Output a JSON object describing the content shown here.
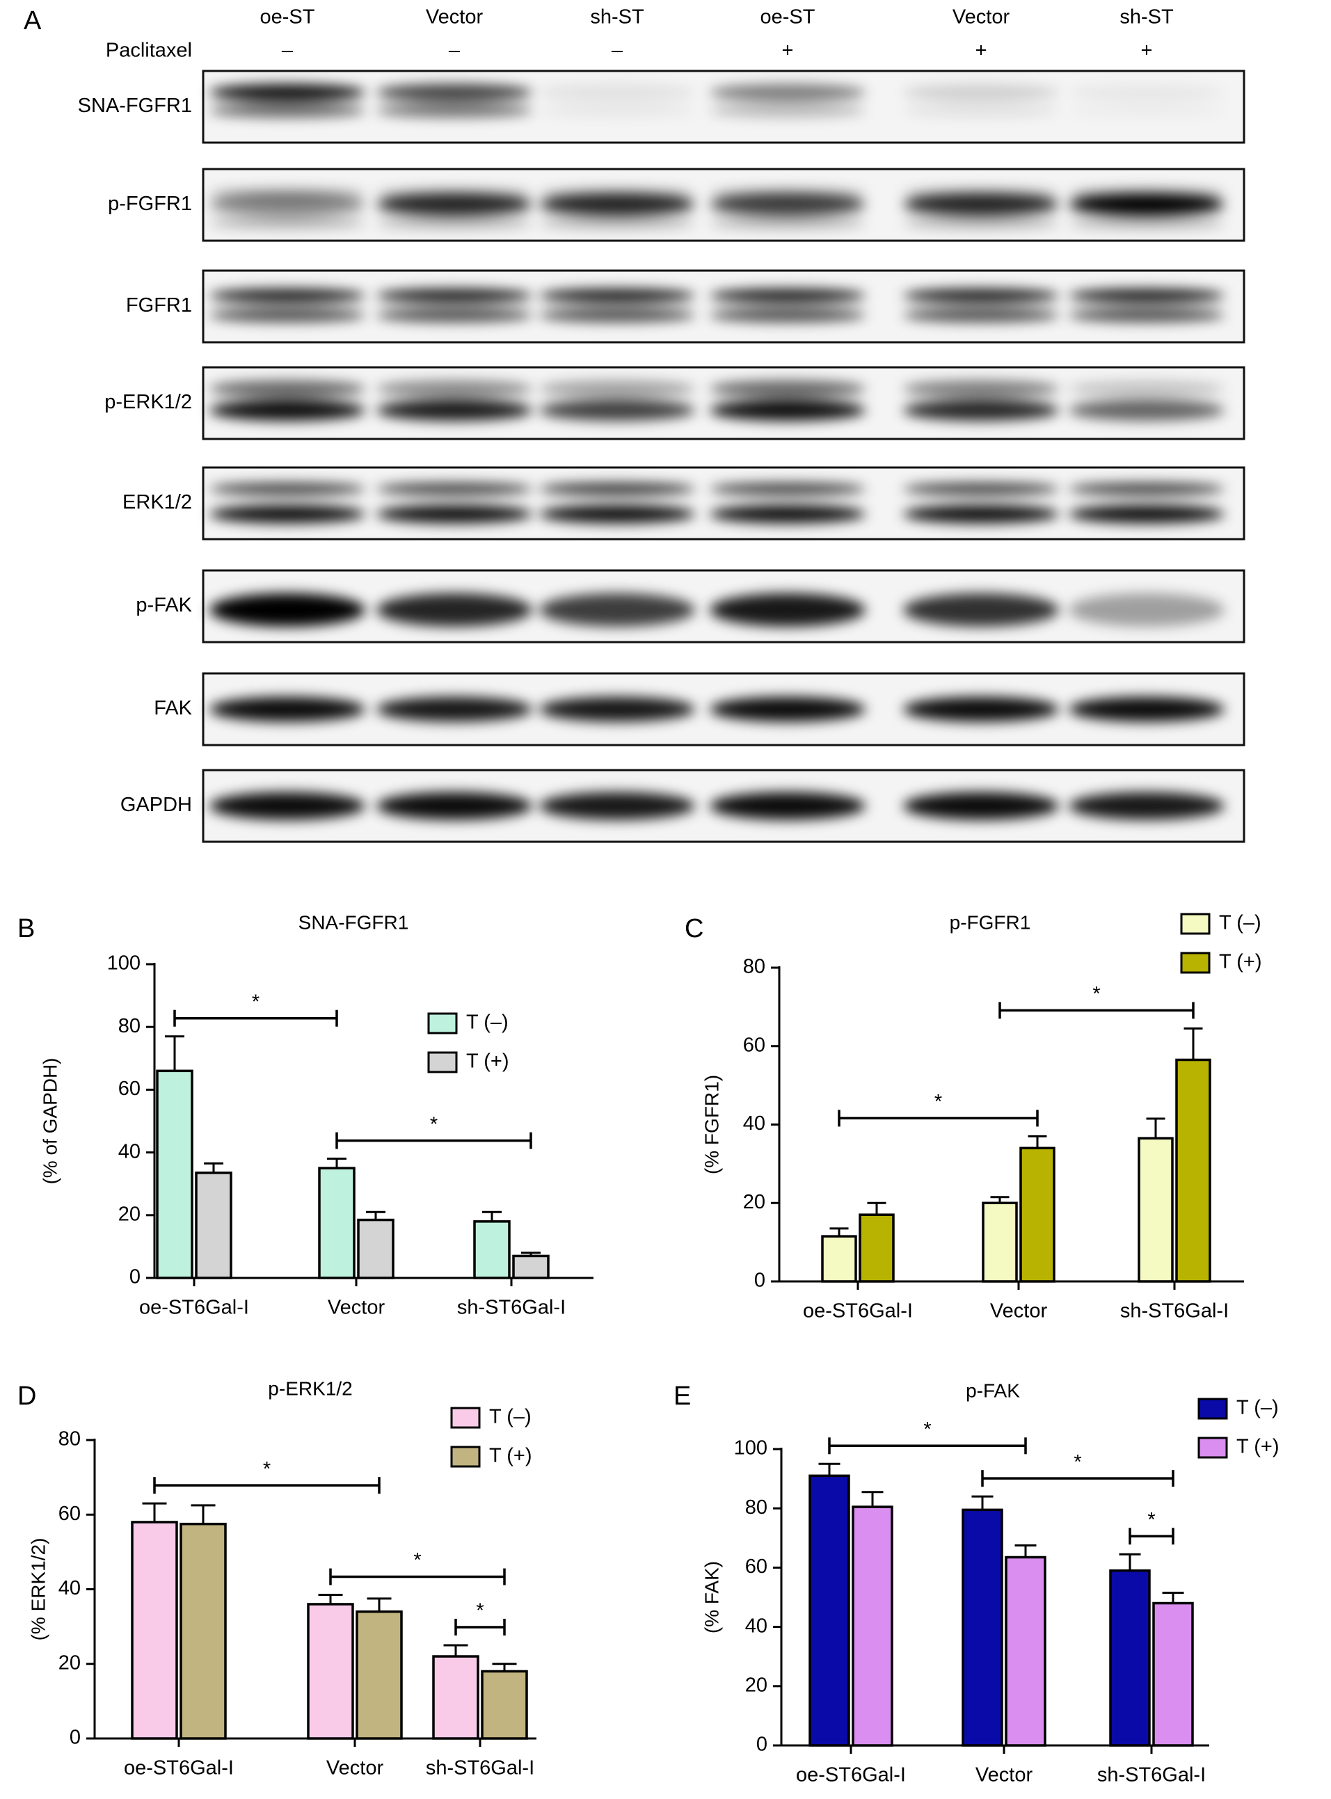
{
  "blot": {
    "panel_label": "A",
    "lanes": [
      "oe-ST",
      "Vector",
      "sh-ST",
      "oe-ST",
      "Vector",
      "sh-ST"
    ],
    "treatment_label": "Paclitaxel",
    "treatment": [
      "–",
      "–",
      "–",
      "+",
      "+",
      "+"
    ],
    "rows": [
      "SNA-FGFR1",
      "p-FGFR1",
      "FGFR1",
      "p-ERK1/2",
      "ERK1/2",
      "p-FAK",
      "FAK",
      "GAPDH"
    ]
  },
  "chart_data": [
    {
      "type": "bar",
      "panel_label": "B",
      "title": "SNA-FGFR1",
      "y_label": "(% of GAPDH)",
      "categories": [
        "oe-ST6Gal-I",
        "Vector",
        "sh-ST6Gal-I"
      ],
      "series": [
        {
          "name": "T (–)",
          "color": "#bff2de",
          "values": [
            66,
            35,
            18
          ],
          "errors": [
            11,
            3,
            3
          ]
        },
        {
          "name": "T (+)",
          "color": "#d4d4d4",
          "values": [
            33.5,
            18.5,
            7
          ],
          "errors": [
            3,
            2.5,
            1
          ]
        }
      ],
      "ylim": [
        0,
        100
      ],
      "yticks": [
        0,
        20,
        40,
        60,
        80,
        100
      ],
      "significance": [
        {
          "label": "*",
          "from": [
            0,
            0
          ],
          "to": [
            1,
            0
          ]
        },
        {
          "label": "*",
          "from": [
            1,
            0
          ],
          "to": [
            2,
            1
          ]
        }
      ]
    },
    {
      "type": "bar",
      "panel_label": "C",
      "title": "p-FGFR1",
      "y_label": "(% FGFR1)",
      "categories": [
        "oe-ST6Gal-I",
        "Vector",
        "sh-ST6Gal-I"
      ],
      "series": [
        {
          "name": "T (–)",
          "color": "#f5f9c2",
          "values": [
            11.5,
            20,
            36.5
          ],
          "errors": [
            2,
            1.5,
            5
          ]
        },
        {
          "name": "T (+)",
          "color": "#b8b300",
          "values": [
            17,
            34,
            56.5
          ],
          "errors": [
            3,
            3,
            8
          ]
        }
      ],
      "ylim": [
        0,
        80
      ],
      "yticks": [
        0,
        20,
        40,
        60,
        80
      ],
      "significance": [
        {
          "label": "*",
          "from": [
            0,
            0
          ],
          "to": [
            1,
            1
          ]
        },
        {
          "label": "*",
          "from": [
            1,
            0
          ],
          "to": [
            2,
            1
          ]
        }
      ]
    },
    {
      "type": "bar",
      "panel_label": "D",
      "title": "p-ERK1/2",
      "y_label": "(% ERK1/2)",
      "categories": [
        "oe-ST6Gal-I",
        "Vector",
        "sh-ST6Gal-I"
      ],
      "series": [
        {
          "name": "T (–)",
          "color": "#f9cbe9",
          "values": [
            58,
            36,
            22
          ],
          "errors": [
            5,
            2.5,
            3
          ]
        },
        {
          "name": "T (+)",
          "color": "#c2b480",
          "values": [
            57.5,
            34,
            18
          ],
          "errors": [
            5,
            3.5,
            2
          ]
        }
      ],
      "ylim": [
        0,
        80
      ],
      "yticks": [
        0,
        20,
        40,
        60,
        80
      ],
      "significance": [
        {
          "label": "*",
          "from": [
            0,
            0
          ],
          "to": [
            1,
            1
          ]
        },
        {
          "label": "*",
          "from": [
            1,
            0
          ],
          "to": [
            2,
            1
          ]
        },
        {
          "label": "*",
          "from": [
            2,
            0
          ],
          "to": [
            2,
            1
          ]
        }
      ]
    },
    {
      "type": "bar",
      "panel_label": "E",
      "title": "p-FAK",
      "y_label": "(% FAK)",
      "categories": [
        "oe-ST6Gal-I",
        "Vector",
        "sh-ST6Gal-I"
      ],
      "series": [
        {
          "name": "T (–)",
          "color": "#0a0aa8",
          "values": [
            91,
            79.5,
            59
          ],
          "errors": [
            4,
            4.5,
            5.5
          ]
        },
        {
          "name": "T (+)",
          "color": "#d98ef0",
          "values": [
            80.5,
            63.5,
            48
          ],
          "errors": [
            5,
            4,
            3.5
          ]
        }
      ],
      "ylim": [
        0,
        100
      ],
      "yticks": [
        0,
        20,
        40,
        60,
        80,
        100
      ],
      "significance": [
        {
          "label": "*",
          "from": [
            0,
            0
          ],
          "to": [
            1,
            1
          ]
        },
        {
          "label": "*",
          "from": [
            1,
            0
          ],
          "to": [
            2,
            1
          ]
        },
        {
          "label": "*",
          "from": [
            2,
            0
          ],
          "to": [
            2,
            1
          ]
        }
      ]
    }
  ]
}
